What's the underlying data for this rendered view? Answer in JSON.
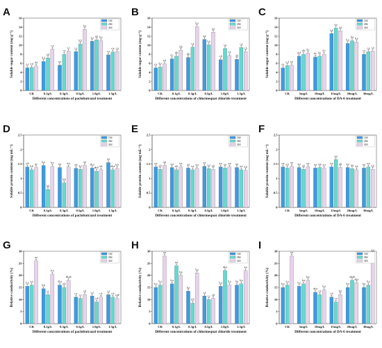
{
  "colors": {
    "series_14d": "#3d9be0",
    "series_28d": "#64d9d0",
    "series_42d": "#e7d3ec",
    "axis": "#111111"
  },
  "chart_data": [
    {
      "letter": "A",
      "type": "bar",
      "xlabel": "Different concentrations of paclobutrazol treatment",
      "ylabel": "Soluble sugar content (mg·g⁻¹)",
      "ylim": [
        0,
        16
      ],
      "yticks": [
        0,
        2,
        4,
        6,
        8,
        10,
        12,
        14,
        16
      ],
      "categories": [
        "CK",
        "0.1g/L",
        "0.3g/L",
        "0.5g/L",
        "1.0g/L",
        "1.5g/L"
      ],
      "legend": [
        "14d",
        "28d",
        "42d"
      ],
      "legend_position": "top-right",
      "series": [
        {
          "name": "14d",
          "values": [
            5.0,
            6.4,
            5.6,
            8.6,
            10.9,
            7.9
          ],
          "labels": [
            "e,e",
            "d,d",
            "e,e",
            "c,e",
            "a,a",
            "c,a"
          ]
        },
        {
          "name": "28d",
          "values": [
            5.1,
            7.2,
            8.0,
            10.3,
            11.2,
            8.5
          ],
          "labels": [
            "e,d",
            "e,d",
            "c,a",
            "b,b",
            "a,b",
            "c,b"
          ]
        },
        {
          "name": "42d",
          "values": [
            5.4,
            9.1,
            8.7,
            13.5,
            11.0,
            8.6
          ],
          "labels": [
            "d,a",
            "c,a",
            "c,c",
            "b,a",
            "b,a",
            "c,a"
          ]
        }
      ]
    },
    {
      "letter": "B",
      "type": "bar",
      "xlabel": "Different concentrations of chlormequat chloride treatment",
      "ylabel": "Soluble sugar content (mg·g⁻¹)",
      "ylim": [
        0,
        16
      ],
      "yticks": [
        0,
        2,
        4,
        6,
        8,
        10,
        12,
        14,
        16
      ],
      "categories": [
        "CK",
        "0.1g/L",
        "0.3g/L",
        "0.5g/L",
        "1.0g/L",
        "1.5g/L"
      ],
      "legend": [
        "14d",
        "28d",
        "42d"
      ],
      "legend_position": "top-right",
      "series": [
        {
          "name": "14d",
          "values": [
            5.0,
            7.0,
            7.3,
            11.3,
            6.8,
            6.9
          ],
          "labels": [
            "e,e",
            "d,c",
            "d,b",
            "a,a",
            "c,b",
            "d,b"
          ]
        },
        {
          "name": "28d",
          "values": [
            5.2,
            7.6,
            9.6,
            10.1,
            9.3,
            9.5
          ],
          "labels": [
            "d,e",
            "d,b",
            "c,a",
            "b,a",
            "c,a",
            "c,a"
          ]
        },
        {
          "name": "42d",
          "values": [
            5.9,
            8.9,
            14.1,
            12.9,
            7.7,
            8.6
          ],
          "labels": [
            "e,d",
            "d,b",
            "b,a",
            "a,a",
            "c,b",
            "c,b"
          ]
        }
      ]
    },
    {
      "letter": "C",
      "type": "bar",
      "xlabel": "Different concentrations of DA-6 treatment",
      "ylabel": "Soluble sugar content (mg·g⁻¹)",
      "ylim": [
        0,
        16
      ],
      "yticks": [
        0,
        2,
        4,
        6,
        8,
        10,
        12,
        14,
        16
      ],
      "categories": [
        "CK",
        "5mg/L",
        "10mg/L",
        "15mg/L",
        "20mg/L",
        "30mg/L"
      ],
      "legend": [
        "14d",
        "28d",
        "42d"
      ],
      "legend_position": "top-right",
      "series": [
        {
          "name": "14d",
          "values": [
            5.0,
            7.6,
            7.4,
            12.6,
            10.4,
            8.0
          ],
          "labels": [
            "e,e",
            "d,d",
            "d,c",
            "a,a",
            "b,a",
            "c,a"
          ]
        },
        {
          "name": "28d",
          "values": [
            5.5,
            8.0,
            7.6,
            13.8,
            11.0,
            8.6
          ],
          "labels": [
            "e,d",
            "d,b",
            "d,c",
            "a,a",
            "b,a",
            "c,a"
          ]
        },
        {
          "name": "42d",
          "values": [
            5.6,
            8.3,
            8.0,
            13.2,
            10.7,
            8.7
          ],
          "labels": [
            "e,e",
            "d,c",
            "d,c",
            "a,a",
            "b,a",
            "c,a"
          ]
        }
      ]
    },
    {
      "letter": "D",
      "type": "bar",
      "xlabel": "Different concentrations of paclobutrazol treatment",
      "ylabel": "Soluble protein content (mg·mL⁻¹)",
      "ylim": [
        0,
        2.5
      ],
      "yticks": [
        0,
        0.5,
        1.0,
        1.5,
        2.0,
        2.5
      ],
      "categories": [
        "CK",
        "0.1g/L",
        "0.3g/L",
        "0.5g/L",
        "1.0g/L",
        "1.5g/L"
      ],
      "legend": [
        "14d",
        "28d",
        "42d"
      ],
      "legend_position": "top-right",
      "series": [
        {
          "name": "14d",
          "values": [
            1.4,
            1.45,
            1.38,
            1.35,
            1.36,
            1.55
          ],
          "labels": [
            "a,b",
            "b,a",
            "a,a",
            "a,b",
            "ab,a",
            "a,a"
          ]
        },
        {
          "name": "28d",
          "values": [
            1.3,
            0.62,
            0.85,
            1.32,
            1.25,
            1.3
          ],
          "labels": [
            "b,b",
            "b,b",
            "b,b",
            "a,a",
            "ab,b",
            "ab,a"
          ]
        },
        {
          "name": "42d",
          "values": [
            1.38,
            1.42,
            1.4,
            1.45,
            1.3,
            1.35
          ],
          "labels": [
            "a,c",
            "b,a",
            "b,a",
            "a,a",
            "a,b",
            "b,b"
          ]
        }
      ]
    },
    {
      "letter": "E",
      "type": "bar",
      "xlabel": "Different concentrations of chlormequat chloride treatment",
      "ylabel": "Soluble protein content (mg·mL⁻¹)",
      "ylim": [
        0,
        2.5
      ],
      "yticks": [
        0,
        0.5,
        1.0,
        1.5,
        2.0,
        2.5
      ],
      "categories": [
        "CK",
        "0.1g/L",
        "0.3g/L",
        "0.5g/L",
        "1.0g/L",
        "1.5g/L"
      ],
      "legend": [
        "14d",
        "28d",
        "42d"
      ],
      "legend_position": "top-right",
      "series": [
        {
          "name": "14d",
          "values": [
            1.4,
            1.38,
            1.36,
            1.42,
            1.4,
            1.38
          ],
          "labels": [
            "a,a",
            "a,a",
            "a,a",
            "a,a",
            "a,a",
            "a,a"
          ]
        },
        {
          "name": "28d",
          "values": [
            1.32,
            1.3,
            1.3,
            1.34,
            1.36,
            1.3
          ],
          "labels": [
            "a,b",
            "a,b",
            "a,a",
            "a,a",
            "a,a",
            "a,a"
          ]
        },
        {
          "name": "42d",
          "values": [
            1.45,
            1.4,
            1.35,
            1.32,
            1.4,
            1.28
          ],
          "labels": [
            "a,a",
            "a,a",
            "a,a",
            "a,b",
            "a,a",
            "a,b"
          ]
        }
      ]
    },
    {
      "letter": "F",
      "type": "bar",
      "xlabel": "Different concentrations of DA-6 treatment",
      "ylabel": "Soluble protein content (mg·mL⁻¹)",
      "ylim": [
        0,
        2.5
      ],
      "yticks": [
        0,
        0.5,
        1.0,
        1.5,
        2.0,
        2.5
      ],
      "categories": [
        "CK",
        "5mg/L",
        "10mg/L",
        "15mg/L",
        "20mg/L",
        "30mg/L"
      ],
      "legend": [
        "14d",
        "28d",
        "42d"
      ],
      "legend_position": "top-right",
      "series": [
        {
          "name": "14d",
          "values": [
            1.4,
            1.38,
            1.36,
            1.4,
            1.38,
            1.36
          ],
          "labels": [
            "a,a",
            "a,a",
            "a,a",
            "a,a",
            "a,a",
            "a,a"
          ]
        },
        {
          "name": "28d",
          "values": [
            1.36,
            1.32,
            1.38,
            1.65,
            1.34,
            1.4
          ],
          "labels": [
            "a,b",
            "a,b",
            "a,a",
            "a,a",
            "a,a",
            "a,a"
          ]
        },
        {
          "name": "42d",
          "values": [
            1.42,
            1.4,
            1.35,
            1.38,
            1.3,
            1.32
          ],
          "labels": [
            "a,a",
            "a,a",
            "a,a",
            "a,b",
            "a,a",
            "a,b"
          ]
        }
      ]
    },
    {
      "letter": "G",
      "type": "bar",
      "xlabel": "Different concentrations of paclobutrazol treatment",
      "ylabel": "Relative conductivity (%)",
      "ylim": [
        0,
        30
      ],
      "yticks": [
        0,
        5,
        10,
        15,
        20,
        25,
        30
      ],
      "categories": [
        "CK",
        "0.1g/L",
        "0.3g/L",
        "0.5g/L",
        "1.0g/L",
        "1.5g/L"
      ],
      "legend": [
        "14d",
        "28d",
        "42d"
      ],
      "legend_position": "top-right",
      "series": [
        {
          "name": "14d",
          "values": [
            15.5,
            14.5,
            16.0,
            11.0,
            11.5,
            12.0
          ],
          "labels": [
            "b,a",
            "b,b",
            "ab,a",
            "c,a",
            "c,a",
            "c,a"
          ]
        },
        {
          "name": "28d",
          "values": [
            16.0,
            12.0,
            15.0,
            10.5,
            9.0,
            11.0
          ],
          "labels": [
            "a,a",
            "c,c",
            "a,b",
            "c,c",
            "c,d",
            "c,b"
          ]
        },
        {
          "name": "42d",
          "values": [
            26.0,
            20.5,
            18.0,
            12.0,
            11.0,
            10.5
          ],
          "labels": [
            "a,a",
            "b,a",
            "ab,ab",
            "c,b",
            "c,b",
            "c,ab"
          ]
        }
      ]
    },
    {
      "letter": "H",
      "type": "bar",
      "xlabel": "Different concentrations of chlormequat chloride treatment",
      "ylabel": "Relative conductivity (%)",
      "ylim": [
        0,
        30
      ],
      "yticks": [
        0,
        5,
        10,
        15,
        20,
        25,
        30
      ],
      "categories": [
        "CK",
        "0.1g/L",
        "0.3g/L",
        "0.5g/L",
        "1.0g/L",
        "1.5g/L"
      ],
      "legend": [
        "14d",
        "28d",
        "42d"
      ],
      "legend_position": "top-right",
      "series": [
        {
          "name": "14d",
          "values": [
            15.0,
            16.5,
            13.5,
            11.5,
            15.5,
            16.0
          ],
          "labels": [
            "b,a",
            "b,a",
            "b,a",
            "c,a",
            "b,a",
            "b,a"
          ]
        },
        {
          "name": "28d",
          "values": [
            16.0,
            24.0,
            8.5,
            10.0,
            22.0,
            16.5
          ],
          "labels": [
            "b,a",
            "a,a",
            "d,b",
            "c,c",
            "ab,a",
            "b,a"
          ]
        },
        {
          "name": "42d",
          "values": [
            28.0,
            20.0,
            21.0,
            10.5,
            16.0,
            22.0
          ],
          "labels": [
            "a,a",
            "b,a",
            "b,a",
            "c,b",
            "b,a",
            "a,a"
          ]
        }
      ]
    },
    {
      "letter": "I",
      "type": "bar",
      "xlabel": "Different concentrations of DA-6 treatment",
      "ylabel": "Relative conductivity (%)",
      "ylim": [
        0,
        30
      ],
      "yticks": [
        0,
        5,
        10,
        15,
        20,
        25,
        30
      ],
      "categories": [
        "CK",
        "5mg/L",
        "10mg/L",
        "15mg/L",
        "20mg/L",
        "30mg/L"
      ],
      "legend": [
        "14d",
        "28d",
        "42d"
      ],
      "legend_position": "top-right",
      "series": [
        {
          "name": "14d",
          "values": [
            15.0,
            15.5,
            13.0,
            11.0,
            15.0,
            15.0
          ],
          "labels": [
            "b,a",
            "b,a",
            "ab,a",
            "c,b",
            "b,a",
            "b,a"
          ]
        },
        {
          "name": "28d",
          "values": [
            16.0,
            16.5,
            12.0,
            9.0,
            18.0,
            16.0
          ],
          "labels": [
            "a,a",
            "b,a",
            "c,b",
            "c,a",
            "ab,ab",
            "b,a"
          ]
        },
        {
          "name": "42d",
          "values": [
            28.0,
            18.0,
            14.0,
            12.0,
            17.0,
            29.0
          ],
          "labels": [
            "a,a",
            "b,a",
            "b,a",
            "b,b",
            "ab,a",
            "a,a"
          ]
        }
      ]
    }
  ]
}
